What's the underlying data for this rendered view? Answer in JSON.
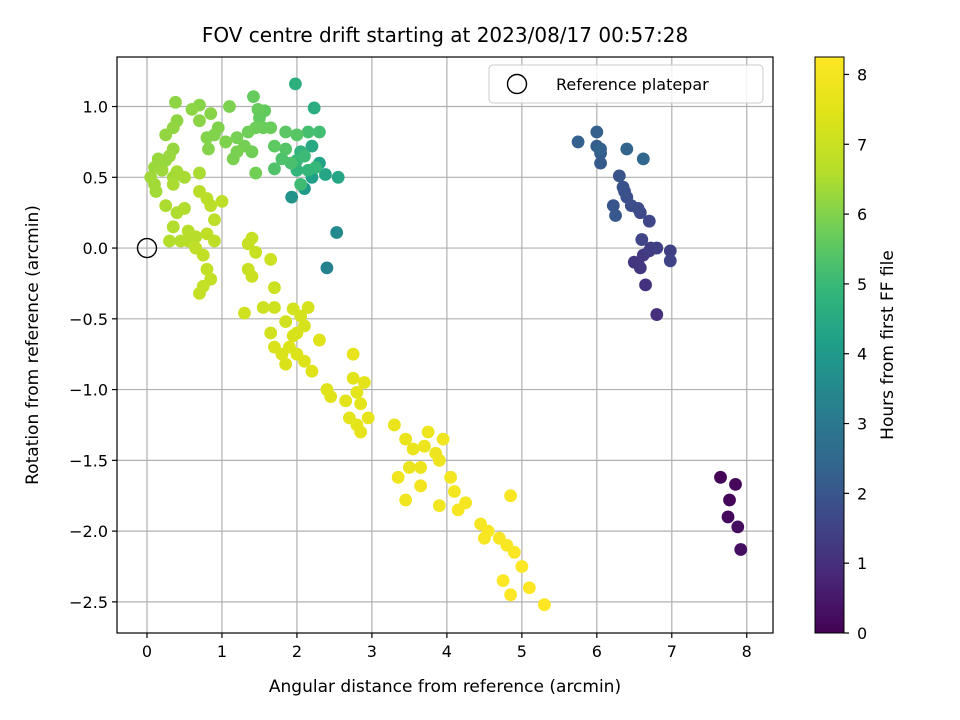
{
  "chart_data": {
    "type": "scatter",
    "title": "FOV centre drift starting at 2023/08/17 00:57:28",
    "xlabel": "Angular distance from reference (arcmin)",
    "ylabel": "Rotation from reference (arcmin)",
    "xlim": [
      -0.4,
      8.35
    ],
    "ylim": [
      -2.72,
      1.35
    ],
    "xticks": [
      0,
      1,
      2,
      3,
      4,
      5,
      6,
      7,
      8
    ],
    "yticks": [
      1.0,
      0.5,
      0.0,
      -0.5,
      -1.0,
      -1.5,
      -2.0,
      -2.5
    ],
    "xtick_labels": [
      "0",
      "1",
      "2",
      "3",
      "4",
      "5",
      "6",
      "7",
      "8"
    ],
    "ytick_labels": [
      "1.0",
      "0.5",
      "0.0",
      "−0.5",
      "−1.0",
      "−1.5",
      "−2.0",
      "−2.5"
    ],
    "grid": true,
    "legend": {
      "label": "Reference platepar",
      "placement": "top-right"
    },
    "reference_point": {
      "x": 0,
      "y": 0
    },
    "colorbar": {
      "label": "Hours from first FF file",
      "colormap": "viridis",
      "range": [
        0,
        8.25
      ],
      "ticks": [
        0,
        1,
        2,
        3,
        4,
        5,
        6,
        7,
        8
      ],
      "tick_labels": [
        "0",
        "1",
        "2",
        "3",
        "4",
        "5",
        "6",
        "7",
        "8"
      ]
    },
    "points": [
      [
        7.65,
        -1.62,
        0.05
      ],
      [
        7.77,
        -1.78,
        0.1
      ],
      [
        7.85,
        -1.67,
        0.15
      ],
      [
        7.75,
        -1.9,
        0.2
      ],
      [
        7.88,
        -1.97,
        0.25
      ],
      [
        7.92,
        -2.13,
        0.3
      ],
      [
        6.8,
        -0.47,
        1.0
      ],
      [
        6.65,
        -0.26,
        1.05
      ],
      [
        6.55,
        -0.11,
        1.1
      ],
      [
        6.5,
        -0.1,
        1.15
      ],
      [
        6.58,
        -0.14,
        1.2
      ],
      [
        6.62,
        -0.05,
        1.25
      ],
      [
        6.7,
        -0.02,
        1.3
      ],
      [
        6.72,
        0.0,
        1.35
      ],
      [
        6.8,
        0.0,
        1.4
      ],
      [
        6.98,
        -0.02,
        1.45
      ],
      [
        6.98,
        -0.09,
        1.5
      ],
      [
        6.6,
        0.06,
        1.55
      ],
      [
        6.7,
        0.19,
        1.6
      ],
      [
        6.58,
        0.25,
        1.65
      ],
      [
        6.55,
        0.28,
        1.7
      ],
      [
        6.46,
        0.3,
        1.75
      ],
      [
        6.4,
        0.36,
        1.8
      ],
      [
        6.37,
        0.4,
        1.85
      ],
      [
        6.35,
        0.43,
        1.9
      ],
      [
        6.3,
        0.51,
        1.95
      ],
      [
        6.22,
        0.3,
        2.0
      ],
      [
        6.25,
        0.23,
        2.05
      ],
      [
        6.05,
        0.6,
        2.1
      ],
      [
        6.05,
        0.67,
        2.15
      ],
      [
        6.0,
        0.72,
        2.2
      ],
      [
        6.0,
        0.82,
        2.25
      ],
      [
        5.75,
        0.75,
        2.3
      ],
      [
        6.05,
        0.7,
        2.35
      ],
      [
        6.4,
        0.7,
        2.4
      ],
      [
        6.62,
        0.63,
        2.45
      ],
      [
        2.4,
        -0.14,
        3.3
      ],
      [
        2.53,
        0.11,
        3.5
      ],
      [
        1.93,
        0.36,
        3.8
      ],
      [
        2.1,
        0.42,
        4.0
      ],
      [
        2.2,
        0.5,
        4.15
      ],
      [
        2.3,
        0.6,
        4.25
      ],
      [
        2.38,
        0.52,
        4.35
      ],
      [
        2.55,
        0.5,
        4.4
      ],
      [
        2.2,
        0.72,
        4.45
      ],
      [
        2.23,
        0.99,
        4.6
      ],
      [
        1.98,
        1.16,
        4.7
      ],
      [
        2.05,
        0.68,
        4.8
      ],
      [
        2.0,
        0.55,
        4.85
      ],
      [
        2.15,
        0.55,
        4.9
      ],
      [
        2.25,
        0.57,
        4.95
      ],
      [
        2.0,
        0.62,
        5.0
      ],
      [
        2.1,
        0.65,
        5.05
      ],
      [
        2.05,
        0.45,
        5.1
      ],
      [
        2.3,
        0.82,
        5.15
      ],
      [
        2.15,
        0.82,
        5.2
      ],
      [
        1.92,
        0.6,
        5.25
      ],
      [
        1.8,
        0.63,
        5.3
      ],
      [
        1.7,
        0.56,
        5.35
      ],
      [
        1.85,
        0.7,
        5.4
      ],
      [
        2.0,
        0.8,
        5.45
      ],
      [
        1.85,
        0.82,
        5.5
      ],
      [
        1.7,
        0.72,
        5.55
      ],
      [
        1.57,
        0.97,
        5.6
      ],
      [
        1.5,
        0.92,
        5.62
      ],
      [
        1.42,
        1.07,
        5.65
      ],
      [
        1.48,
        0.98,
        5.68
      ],
      [
        1.65,
        0.85,
        5.7
      ],
      [
        1.55,
        0.85,
        5.72
      ],
      [
        1.45,
        0.85,
        5.75
      ],
      [
        1.35,
        0.82,
        5.77
      ],
      [
        1.4,
        0.68,
        5.8
      ],
      [
        1.45,
        0.53,
        5.82
      ],
      [
        1.3,
        0.72,
        5.85
      ],
      [
        1.2,
        0.78,
        5.87
      ],
      [
        1.15,
        0.63,
        5.9
      ],
      [
        1.2,
        0.68,
        5.92
      ],
      [
        1.1,
        1.0,
        5.94
      ],
      [
        1.05,
        0.75,
        5.96
      ],
      [
        0.95,
        0.85,
        5.98
      ],
      [
        0.9,
        0.8,
        6.0
      ],
      [
        0.8,
        0.78,
        6.02
      ],
      [
        0.82,
        0.7,
        6.04
      ],
      [
        0.7,
        1.01,
        6.06
      ],
      [
        0.85,
        0.95,
        6.08
      ],
      [
        0.7,
        0.9,
        6.1
      ],
      [
        0.6,
        0.98,
        6.12
      ],
      [
        0.38,
        1.03,
        6.14
      ],
      [
        0.4,
        0.9,
        6.16
      ],
      [
        0.35,
        0.85,
        6.18
      ],
      [
        0.25,
        0.8,
        6.2
      ],
      [
        0.25,
        0.62,
        6.22
      ],
      [
        0.35,
        0.7,
        6.24
      ],
      [
        0.3,
        0.65,
        6.26
      ],
      [
        0.15,
        0.63,
        6.28
      ],
      [
        0.1,
        0.57,
        6.3
      ],
      [
        0.2,
        0.55,
        6.32
      ],
      [
        0.05,
        0.5,
        6.34
      ],
      [
        0.1,
        0.45,
        6.36
      ],
      [
        0.12,
        0.4,
        6.38
      ],
      [
        0.35,
        0.5,
        6.4
      ],
      [
        0.4,
        0.54,
        6.42
      ],
      [
        0.5,
        0.5,
        6.44
      ],
      [
        0.7,
        0.53,
        6.46
      ],
      [
        0.35,
        0.45,
        6.48
      ],
      [
        0.25,
        0.3,
        6.5
      ],
      [
        0.4,
        0.25,
        6.52
      ],
      [
        0.5,
        0.28,
        6.54
      ],
      [
        0.35,
        0.15,
        6.56
      ],
      [
        0.3,
        0.05,
        6.58
      ],
      [
        0.45,
        0.05,
        6.6
      ],
      [
        0.55,
        0.12,
        6.62
      ],
      [
        0.65,
        0.08,
        6.64
      ],
      [
        0.55,
        0.05,
        6.66
      ],
      [
        0.7,
        0.4,
        6.68
      ],
      [
        0.8,
        0.35,
        6.7
      ],
      [
        0.85,
        0.3,
        6.72
      ],
      [
        0.9,
        0.2,
        6.74
      ],
      [
        1.0,
        0.33,
        6.76
      ],
      [
        0.9,
        0.05,
        6.78
      ],
      [
        0.8,
        0.1,
        6.8
      ],
      [
        0.65,
        0.0,
        6.82
      ],
      [
        0.75,
        -0.05,
        6.84
      ],
      [
        0.8,
        -0.15,
        6.86
      ],
      [
        0.85,
        -0.22,
        6.88
      ],
      [
        0.75,
        -0.27,
        6.9
      ],
      [
        0.7,
        -0.32,
        6.92
      ],
      [
        1.4,
        0.07,
        6.94
      ],
      [
        1.35,
        0.03,
        6.96
      ],
      [
        1.45,
        -0.03,
        6.98
      ],
      [
        1.35,
        -0.15,
        7.0
      ],
      [
        1.4,
        -0.2,
        7.02
      ],
      [
        1.65,
        -0.08,
        7.04
      ],
      [
        1.7,
        -0.28,
        7.06
      ],
      [
        1.55,
        -0.42,
        7.08
      ],
      [
        1.7,
        -0.42,
        7.1
      ],
      [
        1.3,
        -0.46,
        7.12
      ],
      [
        1.65,
        -0.6,
        7.14
      ],
      [
        1.85,
        -0.52,
        7.16
      ],
      [
        1.95,
        -0.43,
        7.18
      ],
      [
        2.05,
        -0.48,
        7.2
      ],
      [
        2.15,
        -0.42,
        7.22
      ],
      [
        2.1,
        -0.55,
        7.24
      ],
      [
        2.0,
        -0.6,
        7.26
      ],
      [
        1.95,
        -0.62,
        7.28
      ],
      [
        1.7,
        -0.7,
        7.3
      ],
      [
        1.8,
        -0.75,
        7.32
      ],
      [
        1.85,
        -0.82,
        7.34
      ],
      [
        1.9,
        -0.7,
        7.36
      ],
      [
        2.0,
        -0.75,
        7.38
      ],
      [
        2.1,
        -0.8,
        7.4
      ],
      [
        2.3,
        -0.65,
        7.42
      ],
      [
        2.2,
        -0.87,
        7.44
      ],
      [
        2.4,
        -1.0,
        7.46
      ],
      [
        2.45,
        -1.05,
        7.48
      ],
      [
        2.65,
        -1.08,
        7.5
      ],
      [
        2.75,
        -0.92,
        7.52
      ],
      [
        2.8,
        -1.02,
        7.54
      ],
      [
        2.85,
        -1.1,
        7.56
      ],
      [
        2.9,
        -0.95,
        7.58
      ],
      [
        2.7,
        -1.2,
        7.6
      ],
      [
        2.8,
        -1.25,
        7.62
      ],
      [
        2.85,
        -1.3,
        7.64
      ],
      [
        2.95,
        -1.2,
        7.66
      ],
      [
        2.75,
        -0.75,
        7.68
      ],
      [
        3.3,
        -1.25,
        7.7
      ],
      [
        3.45,
        -1.35,
        7.72
      ],
      [
        3.55,
        -1.42,
        7.74
      ],
      [
        3.5,
        -1.55,
        7.76
      ],
      [
        3.65,
        -1.55,
        7.78
      ],
      [
        3.7,
        -1.4,
        7.8
      ],
      [
        3.75,
        -1.3,
        7.82
      ],
      [
        3.85,
        -1.45,
        7.84
      ],
      [
        3.9,
        -1.5,
        7.86
      ],
      [
        3.95,
        -1.35,
        7.88
      ],
      [
        3.35,
        -1.62,
        7.9
      ],
      [
        3.45,
        -1.78,
        7.92
      ],
      [
        3.65,
        -1.68,
        7.94
      ],
      [
        3.9,
        -1.82,
        7.96
      ],
      [
        4.05,
        -1.62,
        7.98
      ],
      [
        4.1,
        -1.72,
        8.0
      ],
      [
        4.15,
        -1.85,
        8.02
      ],
      [
        4.25,
        -1.8,
        8.04
      ],
      [
        4.45,
        -1.95,
        8.06
      ],
      [
        4.5,
        -2.05,
        8.08
      ],
      [
        4.55,
        -2.0,
        8.1
      ],
      [
        4.7,
        -2.05,
        8.12
      ],
      [
        4.85,
        -1.75,
        8.14
      ],
      [
        4.8,
        -2.1,
        8.16
      ],
      [
        4.9,
        -2.15,
        8.18
      ],
      [
        5.0,
        -2.25,
        8.2
      ],
      [
        4.75,
        -2.35,
        8.22
      ],
      [
        4.85,
        -2.45,
        8.23
      ],
      [
        5.3,
        -2.52,
        8.24
      ],
      [
        5.1,
        -2.4,
        8.25
      ]
    ]
  }
}
